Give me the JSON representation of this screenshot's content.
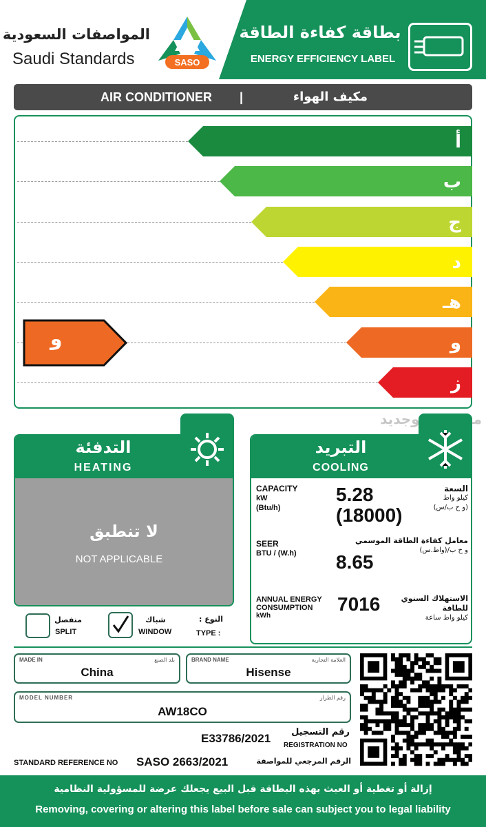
{
  "header": {
    "org_ar": "المواصفات السعودية",
    "org_en": "Saudi Standards",
    "logo_text": "SASO",
    "title_ar": "بطاقة كفاءة الطاقة",
    "title_en": "ENERGY EFFICIENCY LABEL",
    "icon": "air-conditioner-icon"
  },
  "product": {
    "en": "AIR CONDITIONER",
    "sep": "|",
    "ar": "مكيف الهواء"
  },
  "rating": {
    "grades": [
      {
        "label": "أ",
        "color": "#1a8a3f"
      },
      {
        "label": "ب",
        "color": "#4cb847"
      },
      {
        "label": "ج",
        "color": "#bed631"
      },
      {
        "label": "د",
        "color": "#fff200"
      },
      {
        "label": "هـ",
        "color": "#fbb416"
      },
      {
        "label": "و",
        "color": "#ee6a24"
      },
      {
        "label": "ز",
        "color": "#e31d23"
      }
    ],
    "current": {
      "label": "و",
      "color": "#ee6a24",
      "index": 5
    }
  },
  "watermark": "مستعمل وجديد",
  "heating": {
    "title_ar": "التدفئة",
    "title_en": "HEATING",
    "icon": "sun-icon",
    "na_ar": "لا تنطبق",
    "na_en": "NOT APPLICABLE"
  },
  "cooling": {
    "title_ar": "التبريد",
    "title_en": "COOLING",
    "icon": "snowflake-icon",
    "capacity": {
      "label": "CAPACITY",
      "unit1": "kW",
      "unit2": "(Btu/h)",
      "value1": "5.28",
      "value2": "(18000)",
      "ar1": "السعة",
      "ar2": "كيلو واط",
      "ar3": "(و ح ب/س)"
    },
    "seer": {
      "label": "SEER",
      "unit": "BTU / (W.h)",
      "value": "8.65",
      "ar1": "معامل كفاءة الطاقة الموسمي",
      "ar2": "و ح ب/(واط.س)"
    },
    "annual": {
      "label1": "ANNUAL ENERGY",
      "label2": "CONSUMPTION",
      "unit": "kWh",
      "value": "7016",
      "ar1": "الاستهلاك السنوي",
      "ar2": "للطاقة",
      "ar3": "كيلو واط ساعة"
    }
  },
  "type": {
    "label_ar": "النوع :",
    "label_en": "TYPE :",
    "options": [
      {
        "ar": "شباك",
        "en": "WINDOW",
        "checked": true
      },
      {
        "ar": "منفصل",
        "en": "SPLIT",
        "checked": false
      }
    ]
  },
  "fields": {
    "made_in": {
      "en": "MADE IN",
      "ar": "بلد الصنع",
      "value": "China"
    },
    "brand": {
      "en": "BRAND NAME",
      "ar": "العلامة التجارية",
      "value": "Hisense"
    },
    "model": {
      "en": "MODEL NUMBER",
      "ar": "رقم الطراز",
      "value": "AW18CO"
    },
    "registration": {
      "ar": "رقم التسجيل",
      "en": "REGISTRATION NO",
      "value": "E33786/2021"
    },
    "standard": {
      "en": "STANDARD REFERENCE NO",
      "value": "SASO 2663/2021",
      "ar": "الرقم المرجعي للمواصفة"
    }
  },
  "footer": {
    "ar": "إزالة أو تغطية أو العبث بهذه البطاقة قبل البيع يجعلك عرضة للمسؤولية النظامية",
    "en": "Removing, covering or altering this label before sale can subject you to legal liability"
  }
}
